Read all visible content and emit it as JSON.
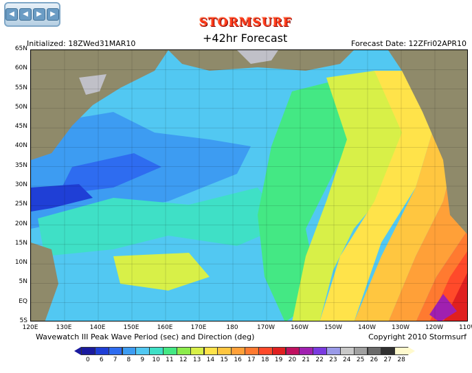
{
  "nav": {
    "buttons": [
      "◀",
      "◀",
      "▶",
      "▶"
    ]
  },
  "header": {
    "brand": "STORMSURF",
    "title": "+42hr Forecast",
    "initialized": "Initialized:  18ZWed31MAR10",
    "forecast_date": "Forecast Date:  12ZFri02APR10"
  },
  "map": {
    "lat_labels": [
      "65N",
      "60N",
      "55N",
      "50N",
      "45N",
      "40N",
      "35N",
      "30N",
      "25N",
      "20N",
      "15N",
      "10N",
      "5N",
      "EQ",
      "5S"
    ],
    "lon_labels": [
      "120E",
      "130E",
      "140E",
      "150E",
      "160E",
      "170E",
      "180",
      "170W",
      "160W",
      "150W",
      "140W",
      "130W",
      "120W",
      "110W"
    ]
  },
  "footer": {
    "caption": "Wavewatch III Peak Wave Period (sec) and Direction (deg)",
    "copyright": "Copyright 2010 Stormsurf"
  },
  "legend": {
    "labels": [
      "0",
      "6",
      "7",
      "8",
      "9",
      "10",
      "11",
      "12",
      "13",
      "14",
      "15",
      "16",
      "17",
      "18",
      "19",
      "20",
      "21",
      "22",
      "23",
      "24",
      "25",
      "26",
      "27",
      "28"
    ],
    "colors": [
      "#1a1a9e",
      "#1f3fd6",
      "#2e6cf0",
      "#3d9cf2",
      "#52c8f2",
      "#3fe0c6",
      "#44e884",
      "#8cec4c",
      "#d8f048",
      "#ffe34a",
      "#ffc640",
      "#ffa038",
      "#ff7a30",
      "#ff4a2a",
      "#e02020",
      "#c01060",
      "#a020b0",
      "#7a3ae0",
      "#9a9ae8",
      "#c8c8c8",
      "#a0a0a0",
      "#6a6a6a",
      "#303030",
      "#fffacd"
    ]
  },
  "colors": {
    "land": "#8f8a6a",
    "ice": "#c0c0c8"
  }
}
